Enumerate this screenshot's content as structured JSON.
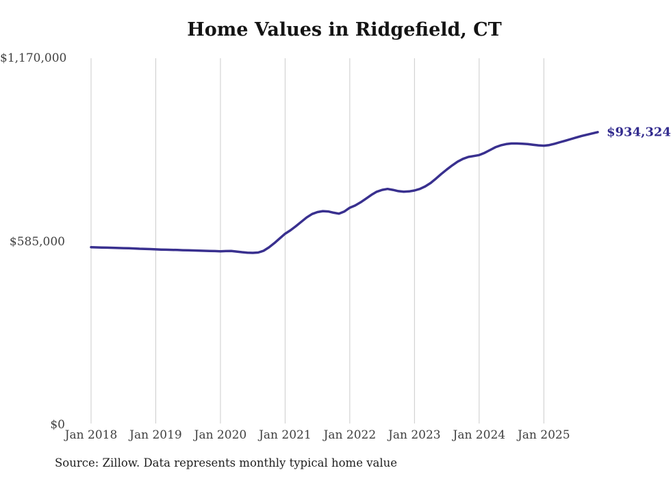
{
  "title": "Home Values in Ridgefield, CT",
  "end_label": "$934,324",
  "source_note": "Source: Zillow. Data represents monthly typical home value",
  "colors": {
    "line": "#39308f",
    "annotation": "#322b8e",
    "grid": "#cbcbcb",
    "axis_text": "#404040",
    "title_text": "#141414"
  },
  "chart_data": {
    "type": "line",
    "title": "Home Values in Ridgefield, CT",
    "xlabel": "",
    "ylabel": "",
    "ylim": [
      0,
      1170000
    ],
    "grid": "vertical-only",
    "legend": "none",
    "annotation": "$934,324",
    "last_value": 934324,
    "y_ticks": [
      {
        "label": "$1,170,000",
        "value": 1170000
      },
      {
        "label": "$585,000",
        "value": 585000
      },
      {
        "label": "$0",
        "value": 0
      }
    ],
    "x_tick_labels": [
      "Jan 2018",
      "Jan 2019",
      "Jan 2020",
      "Jan 2021",
      "Jan 2022",
      "Jan 2023",
      "Jan 2024",
      "Jan 2025"
    ],
    "x": [
      "2018-01",
      "2018-02",
      "2018-03",
      "2018-04",
      "2018-05",
      "2018-06",
      "2018-07",
      "2018-08",
      "2018-09",
      "2018-10",
      "2018-11",
      "2018-12",
      "2019-01",
      "2019-02",
      "2019-03",
      "2019-04",
      "2019-05",
      "2019-06",
      "2019-07",
      "2019-08",
      "2019-09",
      "2019-10",
      "2019-11",
      "2019-12",
      "2020-01",
      "2020-02",
      "2020-03",
      "2020-04",
      "2020-05",
      "2020-06",
      "2020-07",
      "2020-08",
      "2020-09",
      "2020-10",
      "2020-11",
      "2020-12",
      "2021-01",
      "2021-02",
      "2021-03",
      "2021-04",
      "2021-05",
      "2021-06",
      "2021-07",
      "2021-08",
      "2021-09",
      "2021-10",
      "2021-11",
      "2021-12",
      "2022-01",
      "2022-02",
      "2022-03",
      "2022-04",
      "2022-05",
      "2022-06",
      "2022-07",
      "2022-08",
      "2022-09",
      "2022-10",
      "2022-11",
      "2022-12",
      "2023-01",
      "2023-02",
      "2023-03",
      "2023-04",
      "2023-05",
      "2023-06",
      "2023-07",
      "2023-08",
      "2023-09",
      "2023-10",
      "2023-11",
      "2023-12",
      "2024-01",
      "2024-02",
      "2024-03",
      "2024-04",
      "2024-05",
      "2024-06",
      "2024-07",
      "2024-08",
      "2024-09",
      "2024-10",
      "2024-11",
      "2024-12",
      "2025-01",
      "2025-02",
      "2025-03",
      "2025-04",
      "2025-05",
      "2025-06",
      "2025-07",
      "2025-08",
      "2025-09",
      "2025-10",
      "2025-11"
    ],
    "values": [
      567000,
      566500,
      566000,
      565500,
      565000,
      564500,
      564000,
      563500,
      563000,
      562000,
      561500,
      561000,
      560000,
      559500,
      559000,
      558500,
      558000,
      557500,
      557000,
      556500,
      556000,
      555500,
      555000,
      554500,
      554000,
      554500,
      555000,
      553000,
      551000,
      549500,
      549000,
      550000,
      555500,
      566500,
      580000,
      595000,
      610000,
      621000,
      634000,
      648000,
      662000,
      673000,
      679000,
      682000,
      681000,
      677000,
      674000,
      681000,
      693000,
      700000,
      710000,
      722000,
      734000,
      744000,
      750000,
      753000,
      750000,
      746000,
      744000,
      745000,
      748000,
      753000,
      761000,
      772000,
      786000,
      801000,
      815000,
      828000,
      840000,
      849000,
      855000,
      858000,
      861000,
      868000,
      877000,
      886000,
      892000,
      896000,
      898000,
      898000,
      897000,
      896000,
      894000,
      892000,
      891000,
      893000,
      897000,
      902000,
      907000,
      912000,
      917000,
      922000,
      926000,
      930000,
      934324
    ]
  }
}
